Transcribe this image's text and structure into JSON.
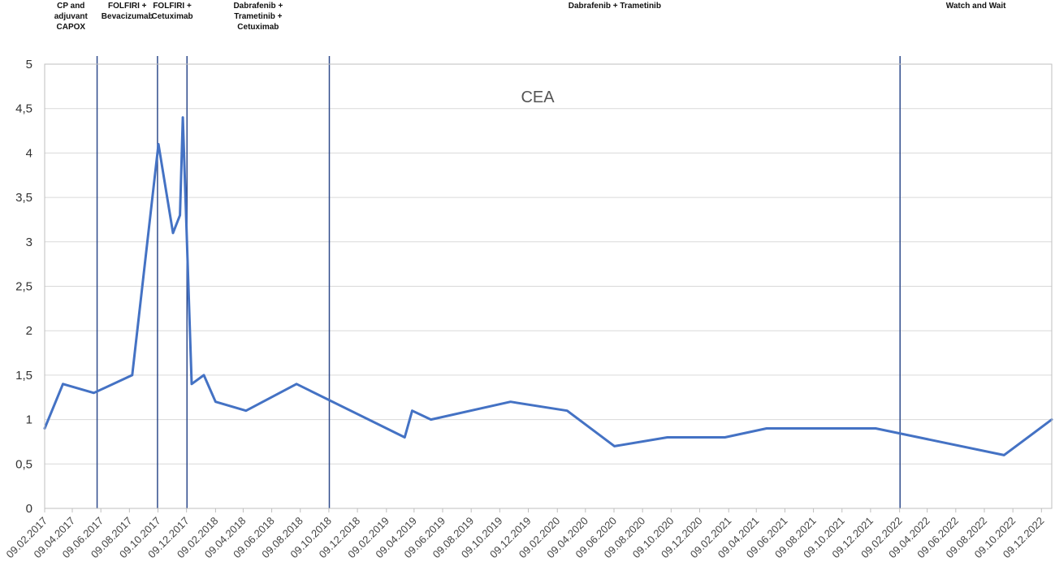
{
  "chart_data": {
    "type": "line",
    "title": "CEA",
    "xlabel": "",
    "ylabel": "",
    "ylim": [
      0,
      5
    ],
    "yticks": [
      "0",
      "0,5",
      "1",
      "1,5",
      "2",
      "2,5",
      "3",
      "3,5",
      "4",
      "4,5",
      "5"
    ],
    "xticks": [
      "09.02.2017",
      "09.04.2017",
      "09.06.2017",
      "09.08.2017",
      "09.10.2017",
      "09.12.2017",
      "09.02.2018",
      "09.04.2018",
      "09.06.2018",
      "09.08.2018",
      "09.10.2018",
      "09.12.2018",
      "09.02.2019",
      "09.04.2019",
      "09.06.2019",
      "09.08.2019",
      "09.10.2019",
      "09.12.2019",
      "09.02.2020",
      "09.04.2020",
      "09.06.2020",
      "09.08.2020",
      "09.10.2020",
      "09.12.2020",
      "09.02.2021",
      "09.04.2021",
      "09.06.2021",
      "09.08.2021",
      "09.10.2021",
      "09.12.2021",
      "09.02.2022",
      "09.04.2022",
      "09.06.2022",
      "09.08.2022",
      "09.10.2022",
      "09.12.2022"
    ],
    "grid": true,
    "line_color": "#4472C4",
    "series": [
      {
        "name": "",
        "x": [
          "2017-02-09",
          "2017-03-20",
          "2017-05-25",
          "2017-08-15",
          "2017-10-10",
          "2017-11-10",
          "2017-11-25",
          "2017-12-01",
          "2017-12-20",
          "2018-01-15",
          "2018-02-09",
          "2018-04-15",
          "2018-08-01",
          "2019-03-20",
          "2019-04-05",
          "2019-05-15",
          "2019-11-01",
          "2020-03-01",
          "2020-06-10",
          "2020-10-01",
          "2021-02-01",
          "2021-05-01",
          "2021-12-20",
          "2022-09-20",
          "2022-12-31"
        ],
        "values": [
          0.9,
          1.4,
          1.3,
          1.5,
          4.1,
          3.1,
          3.3,
          4.4,
          1.4,
          1.5,
          1.2,
          1.1,
          1.4,
          0.8,
          1.1,
          1.0,
          1.2,
          1.1,
          0.7,
          0.8,
          0.8,
          0.9,
          0.9,
          0.6,
          1.0
        ]
      }
    ],
    "phases": [
      {
        "label_lines": [
          "CP and",
          "adjuvant",
          "CAPOX"
        ],
        "start": "2017-02-09",
        "end": "2017-06-01"
      },
      {
        "label_lines": [
          "FOLFIRI +",
          "Bevacizumab"
        ],
        "start": "2017-06-01",
        "end": "2017-10-08"
      },
      {
        "label_lines": [
          "FOLFIRI +",
          "Cetuximab"
        ],
        "start": "2017-10-08",
        "end": "2017-12-10"
      },
      {
        "label_lines": [
          "Dabrafenib +",
          "Trametinib +",
          "Cetuximab"
        ],
        "start": "2017-12-10",
        "end": "2018-10-10"
      },
      {
        "label_lines": [
          "Dabrafenib + Trametinib"
        ],
        "start": "2018-10-10",
        "end": "2022-02-10"
      },
      {
        "label_lines": [
          "Watch and Wait"
        ],
        "start": "2022-02-10",
        "end": "2022-12-31"
      }
    ],
    "phase_boundaries": [
      "2017-06-01",
      "2017-10-08",
      "2017-12-10",
      "2018-10-10",
      "2022-02-10"
    ]
  }
}
